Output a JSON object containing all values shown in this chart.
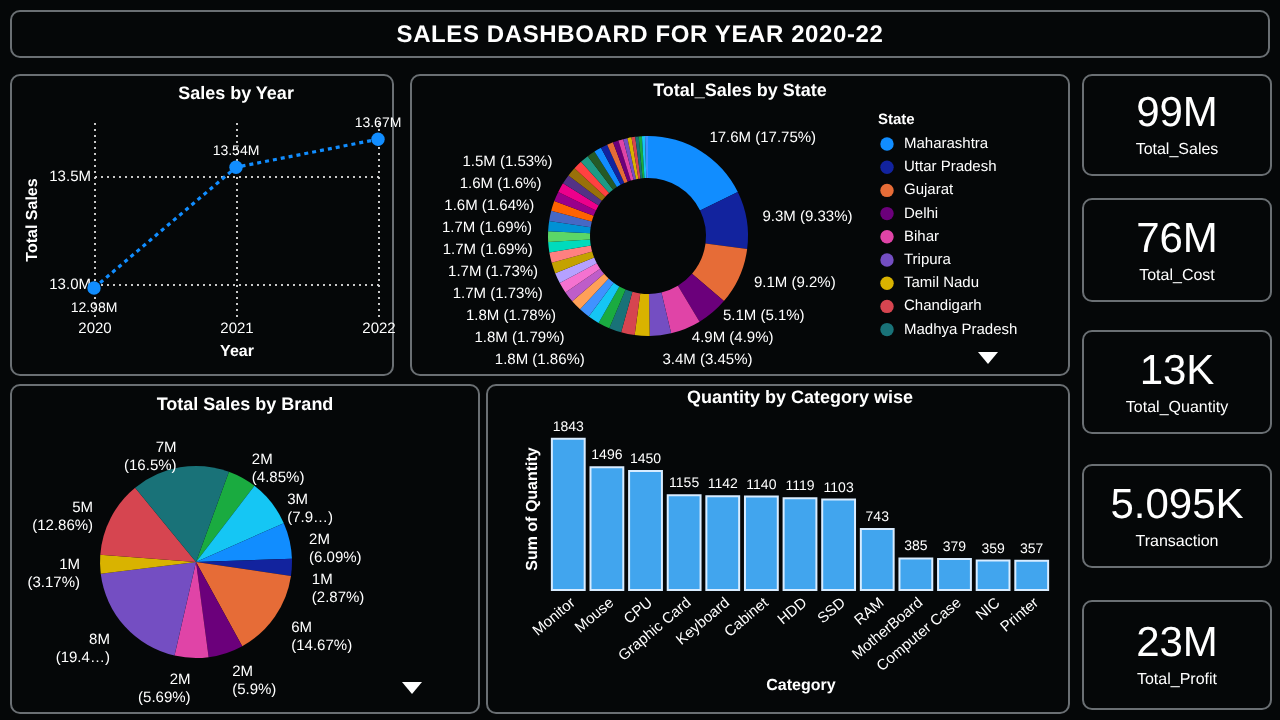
{
  "chart_data": [
    {
      "type": "other",
      "title": "SALES DASHBOARD FOR YEAR 2020-22"
    },
    {
      "type": "line",
      "title": "Sales by Year",
      "xlabel": "Year",
      "ylabel": "Total Sales",
      "categories": [
        "2020",
        "2021",
        "2022"
      ],
      "values": [
        12.98,
        13.54,
        13.67
      ],
      "value_labels": [
        "12.98M",
        "13.54M",
        "13.67M"
      ],
      "color": "#118dff",
      "ylim": [
        12.85,
        13.75
      ],
      "yticks": [
        {
          "value": 13,
          "label": "13.0M"
        },
        {
          "value": 13.5,
          "label": "13.5M"
        }
      ],
      "grid": true,
      "marker": "circle",
      "line_style": "dotted"
    },
    {
      "type": "donut",
      "title": "Total_Sales by State",
      "legend_title": "State",
      "legend": "right",
      "categories": [
        "Maharashtra",
        "Uttar Pradesh",
        "Gujarat",
        "Delhi",
        "Bihar",
        "Tripura",
        "Tamil Nadu",
        "Chandigarh",
        "Madhya Pradesh",
        null,
        null,
        null,
        null,
        null,
        null,
        null,
        null,
        null,
        null,
        null,
        null,
        null,
        null,
        null,
        null,
        null,
        null,
        null,
        null,
        null,
        null,
        null,
        null,
        null,
        null,
        null,
        null,
        null,
        null,
        null,
        null,
        null
      ],
      "values": [
        17.75,
        9.33,
        9.2,
        5.1,
        4.9,
        3.45,
        2.4,
        2.2,
        2.0,
        1.9,
        1.86,
        1.8,
        1.79,
        1.78,
        1.75,
        1.73,
        1.73,
        1.7,
        1.69,
        1.69,
        1.66,
        1.64,
        1.62,
        1.6,
        1.56,
        1.53,
        1.5,
        1.45,
        1.4,
        1.3,
        1.2,
        1.1,
        1.0,
        0.9,
        0.8,
        0.7,
        0.65,
        0.6,
        0.55,
        0.52,
        0.5,
        0.47
      ],
      "value_labels": [
        "17.6M (17.75%)",
        "9.3M (9.33%)",
        "9.1M (9.2%)",
        "5.1M (5.1%)",
        "4.9M (4.9%)",
        "3.4M (3.45%)",
        null,
        null,
        null,
        null,
        "1.8M (1.86%)",
        null,
        "1.8M (1.79%)",
        "1.8M (1.78%)",
        null,
        "1.7M (1.73%)",
        "1.7M (1.73%)",
        null,
        "1.7M (1.69%)",
        "1.7M (1.69%)",
        null,
        "1.6M (1.64%)",
        null,
        "1.6M (1.6%)",
        null,
        "1.5M (1.53%)",
        null,
        null,
        null,
        null,
        null,
        null,
        null,
        null,
        null,
        null,
        null,
        null,
        null,
        null,
        null,
        null
      ],
      "colors": [
        "#118dff",
        "#12239e",
        "#e66c37",
        "#6b007b",
        "#e044a7",
        "#744ec2",
        "#d9b300",
        "#d64550",
        "#197278",
        "#1aab40",
        "#15c6f4",
        "#4092ff",
        "#ffa058",
        "#be5dc9",
        "#f472d0",
        "#b5a1ff",
        "#c4a200",
        "#ff8080",
        "#00dbbc",
        "#5bd667",
        "#0091d5",
        "#4668c5",
        "#ff6300",
        "#99008a",
        "#ec008c",
        "#533285",
        "#99700a",
        "#ff4141",
        "#1f9a85",
        "#255a26",
        "#118dff",
        "#12239e",
        "#e66c37",
        "#6b007b",
        "#e044a7",
        "#744ec2",
        "#d9b300",
        "#d64550",
        "#197278",
        "#1aab40",
        "#15c6f4",
        "#4092ff"
      ]
    },
    {
      "type": "pie",
      "title": "Total Sales by Brand",
      "categories": [
        null,
        null,
        null,
        null,
        null,
        null,
        null,
        null,
        null,
        null,
        null
      ],
      "values": [
        4.85,
        7.95,
        6.09,
        2.87,
        14.67,
        5.9,
        5.69,
        19.45,
        3.17,
        12.86,
        16.5
      ],
      "value_labels": [
        "2M (4.85%)",
        "3M (7.9…)",
        "2M (6.09%)",
        "1M (2.87%)",
        "6M (14.67%)",
        "2M (5.9%)",
        "2M (5.69%)",
        "8M (19.4…)",
        "1M (3.17%)",
        "5M (12.86%)",
        "7M (16.5%)"
      ],
      "colors": [
        "#1aab40",
        "#15c6f4",
        "#118dff",
        "#12239e",
        "#e66c37",
        "#6b007b",
        "#e044a7",
        "#744ec2",
        "#d9b300",
        "#d64550",
        "#197278"
      ]
    },
    {
      "type": "bar",
      "title": "Quantity by Category wise",
      "xlabel": "Category",
      "ylabel": "Sum of Quantity",
      "categories": [
        "Monitor",
        "Mouse",
        "CPU",
        "Graphic Card",
        "Keyboard",
        "Cabinet",
        "HDD",
        "SSD",
        "RAM",
        "MotherBoard",
        "Computer Case",
        "NIC",
        "Printer"
      ],
      "values": [
        1843,
        1496,
        1450,
        1155,
        1142,
        1140,
        1119,
        1103,
        743,
        385,
        379,
        359,
        357
      ],
      "color": "#41a5ee",
      "data_labels": true
    },
    {
      "type": "other",
      "annotations": [
        "99M",
        "Total_Sales"
      ]
    },
    {
      "type": "other",
      "annotations": [
        "76M",
        "Total_Cost"
      ]
    },
    {
      "type": "other",
      "annotations": [
        "13K",
        "Total_Quantity"
      ]
    },
    {
      "type": "other",
      "annotations": [
        "5.095K",
        "Transaction"
      ]
    },
    {
      "type": "other",
      "annotations": [
        "23M",
        "Total_Profit"
      ]
    }
  ]
}
